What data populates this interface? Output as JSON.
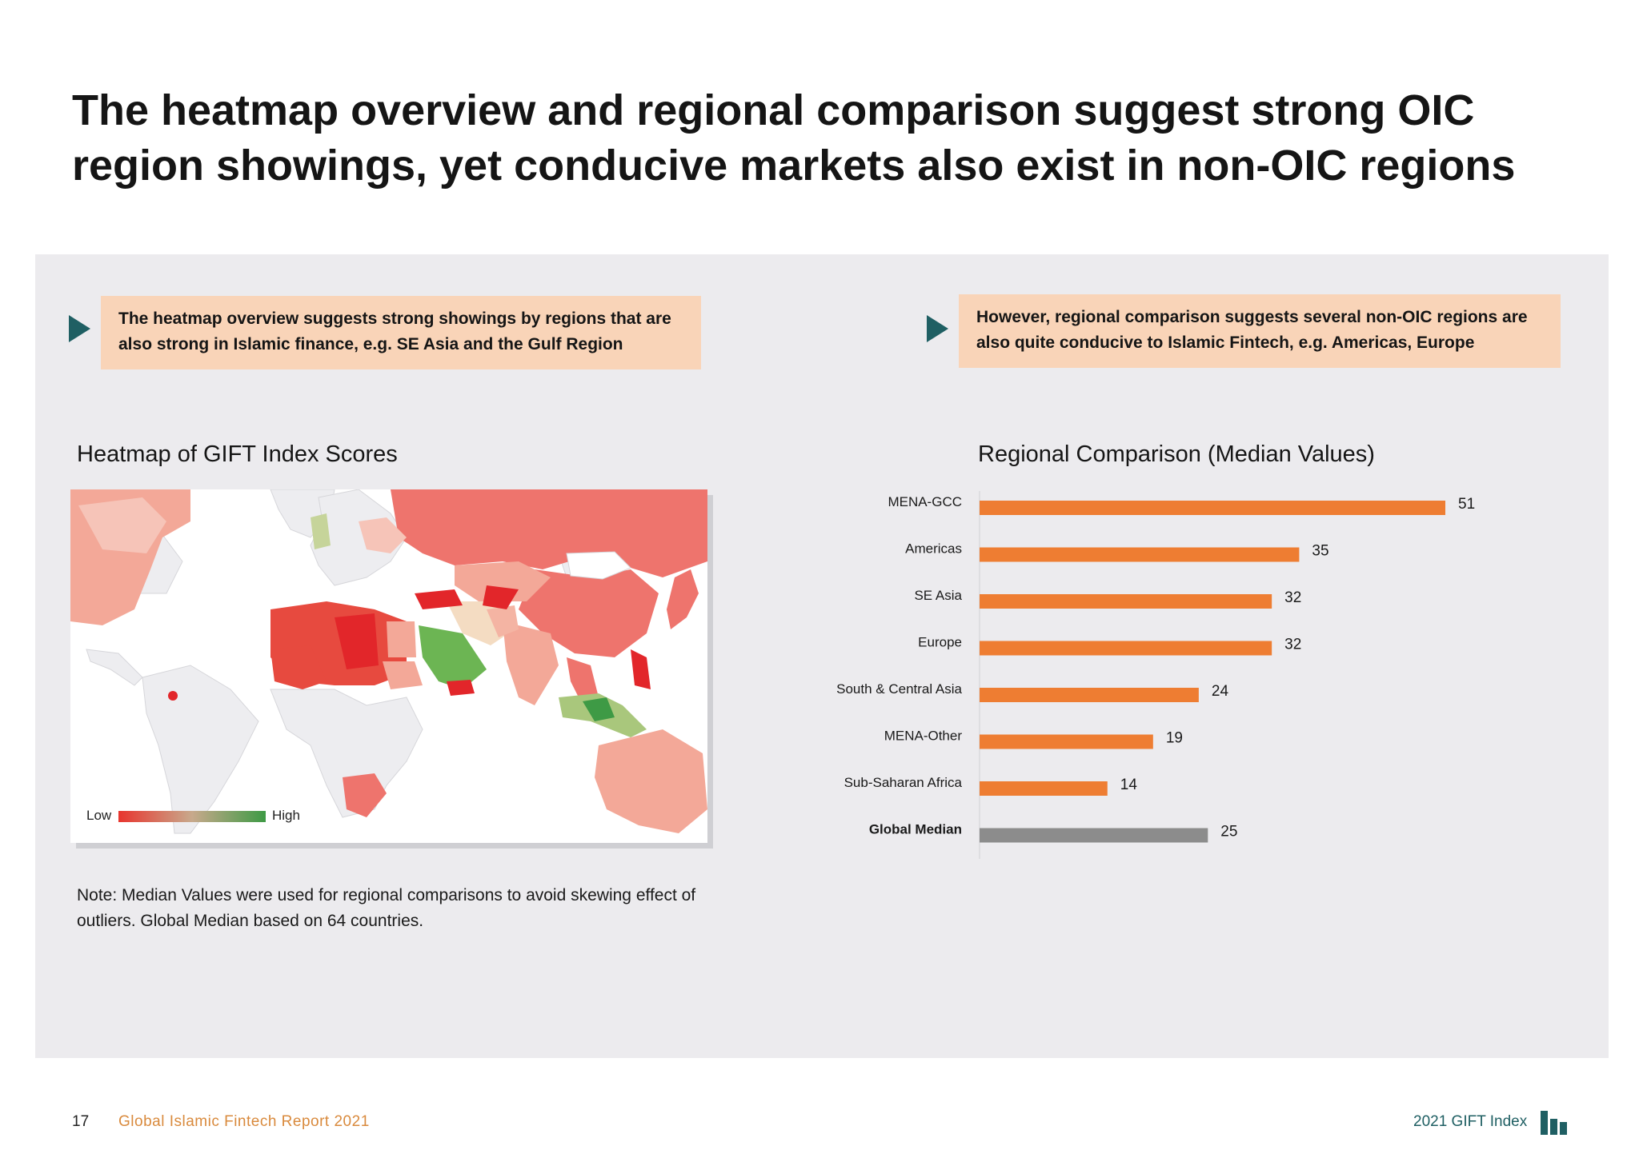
{
  "title": "The heatmap overview and regional comparison suggest strong OIC region showings, yet conducive markets also exist in non-OIC regions",
  "callouts": {
    "left": "The heatmap overview suggests strong showings by regions that are also strong in Islamic finance, e.g. SE Asia and the Gulf Region",
    "right": "However, regional comparison suggests several non-OIC regions are also quite conducive to Islamic Fintech, e.g. Americas, Europe"
  },
  "heatmap": {
    "title": "Heatmap of GIFT Index Scores",
    "legend_low": "Low",
    "legend_high": "High",
    "colors": {
      "low": "#e8352e",
      "mid": "#c8a98c",
      "high": "#3e9a45"
    }
  },
  "note": "Note: Median Values were used for regional comparisons to avoid skewing effect of outliers. Global Median based on 64 countries.",
  "chart_data": {
    "type": "bar",
    "orientation": "horizontal",
    "title": "Regional Comparison (Median Values)",
    "categories": [
      "MENA-GCC",
      "Americas",
      "SE Asia",
      "Europe",
      "South & Central Asia",
      "MENA-Other",
      "Sub-Saharan Africa",
      "Global Median"
    ],
    "values": [
      51,
      35,
      32,
      32,
      24,
      19,
      14,
      25
    ],
    "data_labels": [
      "51",
      "35",
      "32",
      "32",
      "24",
      "19",
      "14",
      "25"
    ],
    "highlight": "Global Median",
    "colors": {
      "bar": "#ee7d32",
      "median": "#8c8c8c"
    },
    "xlim": [
      0,
      51
    ],
    "grid": false,
    "legend": "none"
  },
  "footer": {
    "page_number": "17",
    "report_title": "Global Islamic Fintech Report 2021",
    "brand": "2021 GIFT Index",
    "logo_icon": "bar-chart-logo-icon",
    "colors": {
      "report": "#d98a3d",
      "brand": "#1f5f63"
    }
  }
}
